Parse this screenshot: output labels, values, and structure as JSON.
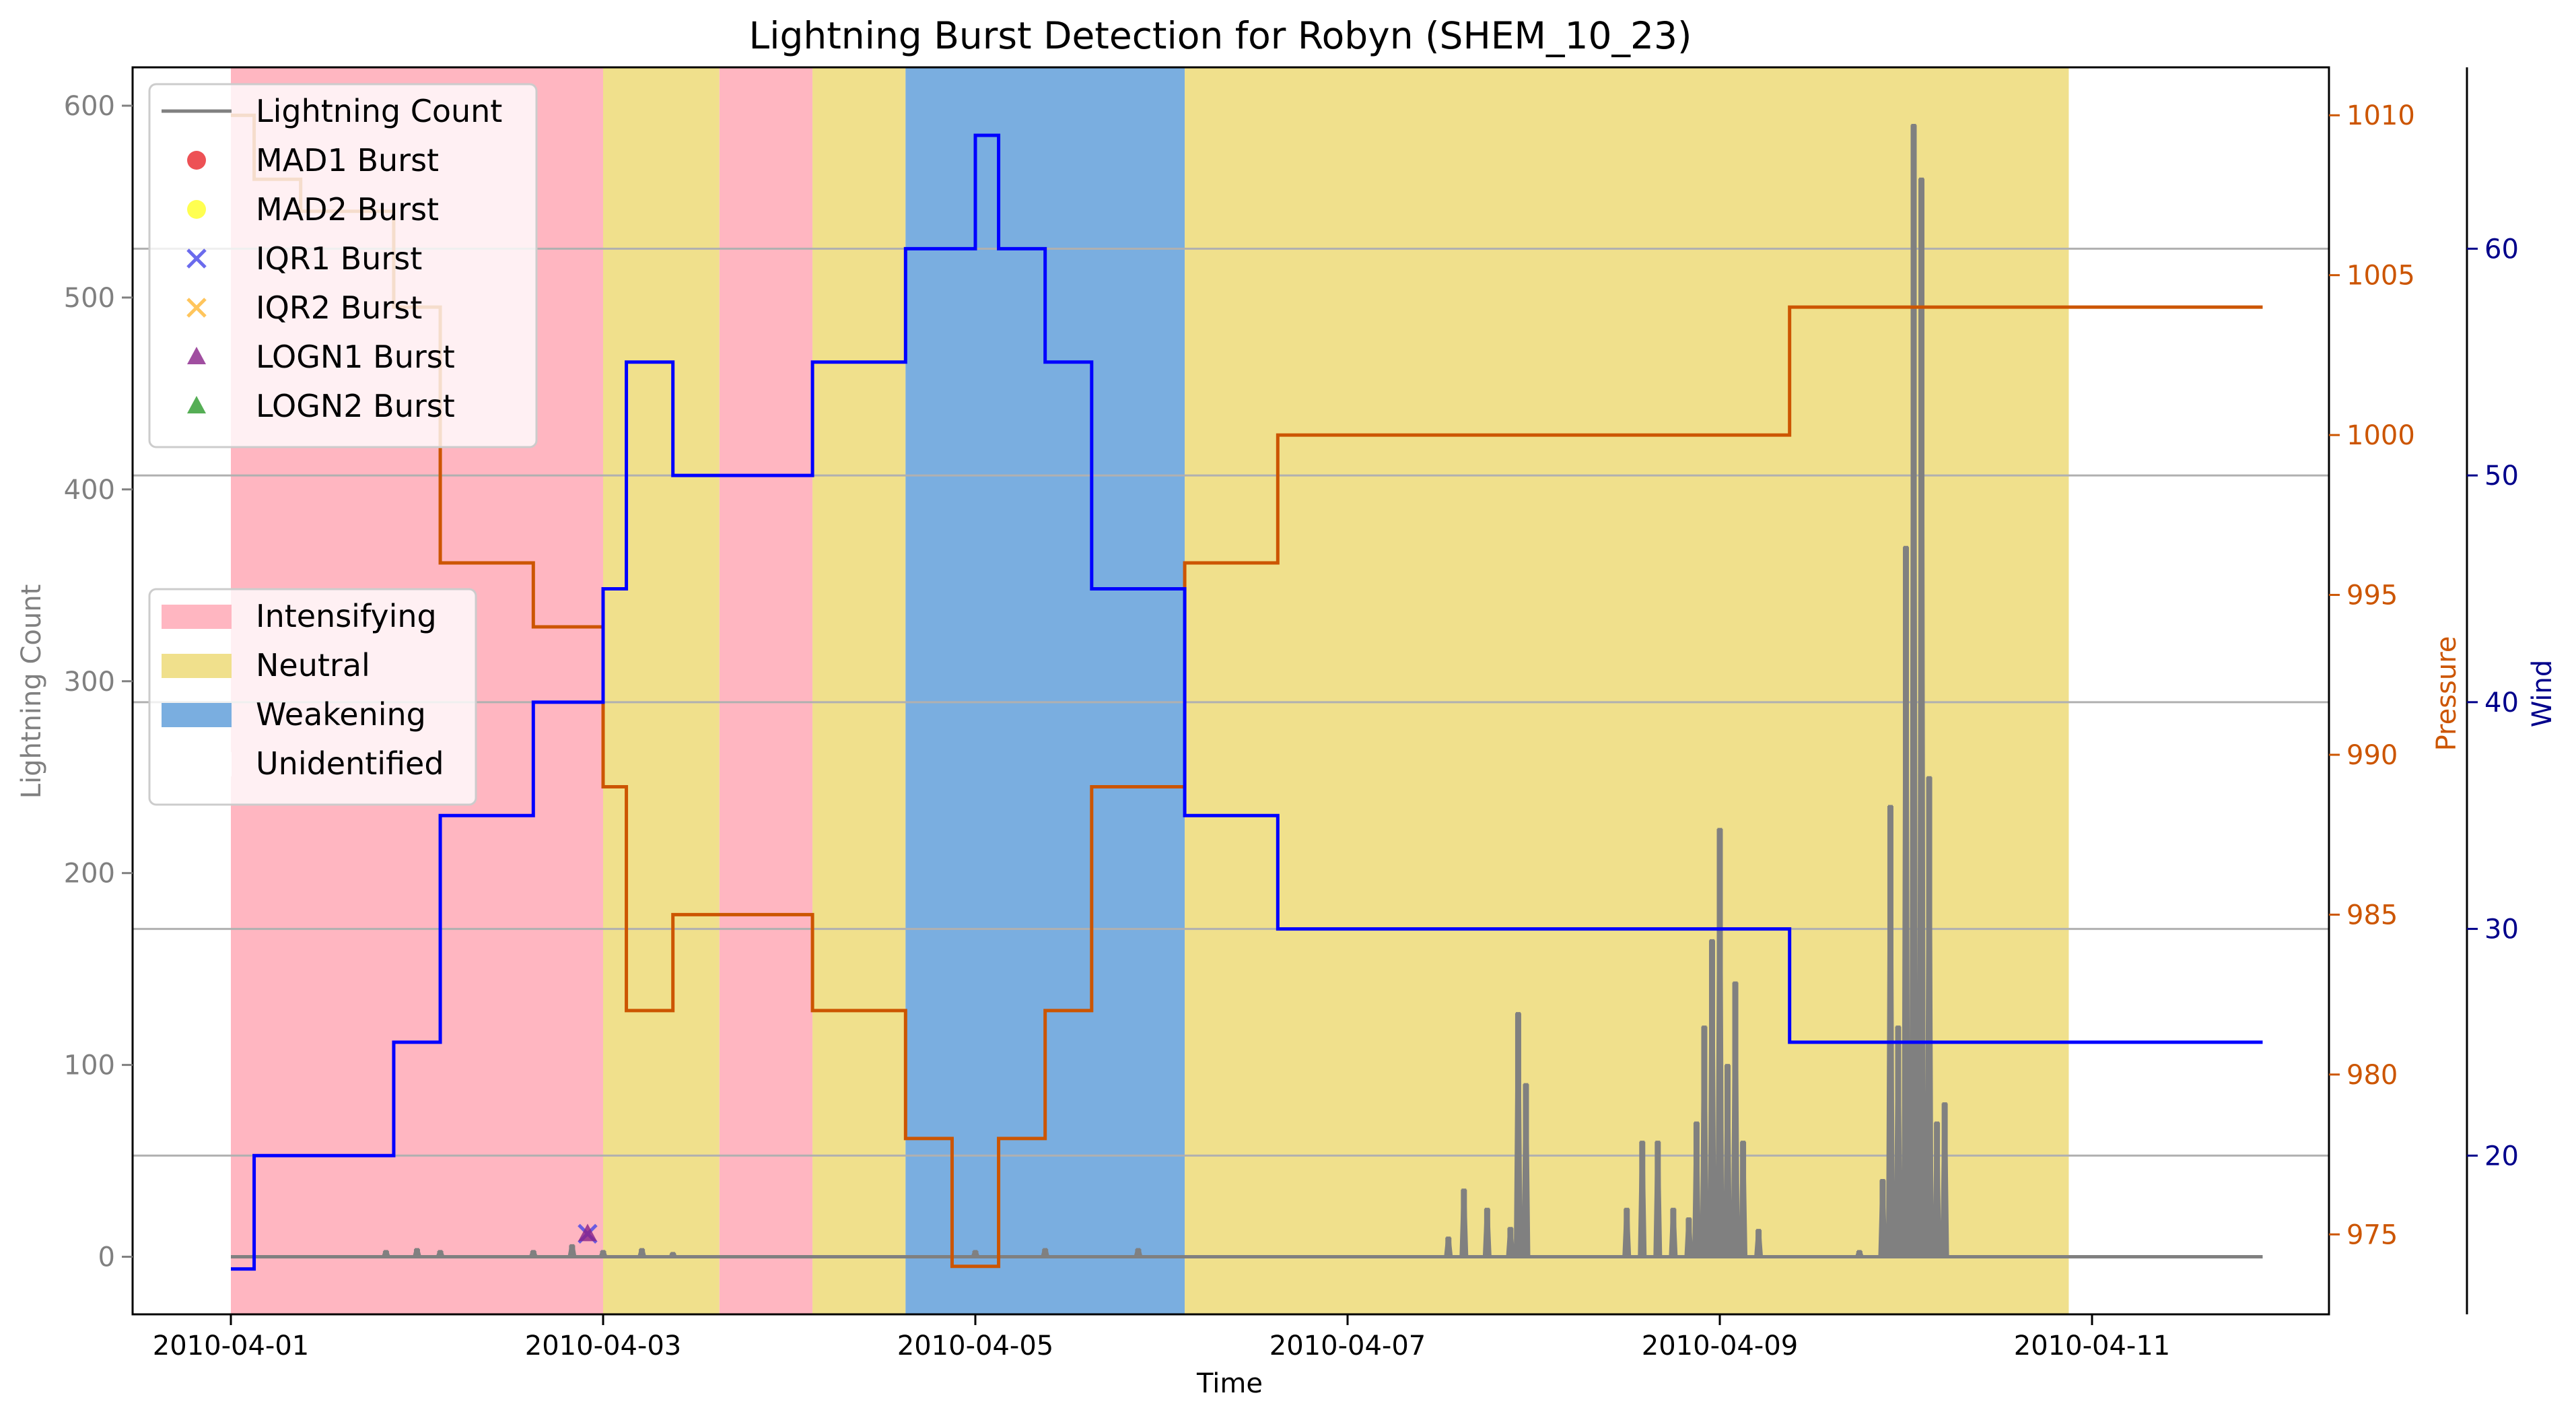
{
  "chart_data": {
    "type": "line",
    "title": "Lightning Burst Detection for Robyn (SHEM_10_23)",
    "xlabel": "Time",
    "ylabel_left": "Lightning Count",
    "ylabel_pressure": "Pressure",
    "ylabel_wind": "Wind",
    "x_range": [
      "2010-04-01T00:00",
      "2010-04-11T22:00"
    ],
    "x_ticks": [
      "2010-04-01",
      "2010-04-03",
      "2010-04-05",
      "2010-04-07",
      "2010-04-09",
      "2010-04-11"
    ],
    "ylim_left": [
      -30,
      620
    ],
    "yticks_left": [
      "0",
      "100",
      "200",
      "300",
      "400",
      "500",
      "600"
    ],
    "ylim_pressure": [
      972.5,
      1011.5
    ],
    "yticks_pressure": [
      "975",
      "980",
      "985",
      "990",
      "995",
      "1000",
      "1005",
      "1010"
    ],
    "ylim_wind": [
      13,
      68
    ],
    "yticks_wind": [
      "20",
      "30",
      "40",
      "50",
      "60"
    ],
    "grid": "horizontal lines at wind ticks",
    "colors": {
      "lightning": "#808080",
      "pressure": "#cc5500",
      "wind": "#0000ff",
      "intensifying": "#ffb6c1",
      "neutral": "#f0e08c",
      "weakening": "#7aaee0",
      "wind_axis": "#00008b"
    },
    "phases": [
      {
        "phase": "Intensifying",
        "start": "2010-04-01T00:00",
        "end": "2010-04-03T00:00"
      },
      {
        "phase": "Neutral",
        "start": "2010-04-03T00:00",
        "end": "2010-04-03T15:00"
      },
      {
        "phase": "Intensifying",
        "start": "2010-04-03T15:00",
        "end": "2010-04-04T03:00"
      },
      {
        "phase": "Neutral",
        "start": "2010-04-04T03:00",
        "end": "2010-04-04T15:00"
      },
      {
        "phase": "Weakening",
        "start": "2010-04-04T15:00",
        "end": "2010-04-06T03:00"
      },
      {
        "phase": "Neutral",
        "start": "2010-04-06T03:00",
        "end": "2010-04-10T21:00"
      }
    ],
    "pressure_series": {
      "name": "Pressure",
      "steps": [
        [
          "2010-04-01T00:00",
          1010
        ],
        [
          "2010-04-01T03:00",
          1008
        ],
        [
          "2010-04-01T09:00",
          1007
        ],
        [
          "2010-04-01T21:00",
          1004
        ],
        [
          "2010-04-02T03:00",
          996
        ],
        [
          "2010-04-02T15:00",
          994
        ],
        [
          "2010-04-03T00:00",
          989
        ],
        [
          "2010-04-03T03:00",
          982
        ],
        [
          "2010-04-03T09:00",
          985
        ],
        [
          "2010-04-04T03:00",
          982
        ],
        [
          "2010-04-04T15:00",
          978
        ],
        [
          "2010-04-04T21:00",
          974
        ],
        [
          "2010-04-05T03:00",
          978
        ],
        [
          "2010-04-05T09:00",
          982
        ],
        [
          "2010-04-05T15:00",
          989
        ],
        [
          "2010-04-06T03:00",
          996
        ],
        [
          "2010-04-06T15:00",
          1000
        ],
        [
          "2010-04-09T09:00",
          1004
        ]
      ],
      "end": "2010-04-11T22:00"
    },
    "wind_series": {
      "name": "Wind",
      "steps": [
        [
          "2010-04-01T00:00",
          15
        ],
        [
          "2010-04-01T03:00",
          20
        ],
        [
          "2010-04-01T21:00",
          25
        ],
        [
          "2010-04-02T03:00",
          35
        ],
        [
          "2010-04-02T15:00",
          40
        ],
        [
          "2010-04-03T00:00",
          45
        ],
        [
          "2010-04-03T03:00",
          55
        ],
        [
          "2010-04-03T09:00",
          50
        ],
        [
          "2010-04-04T03:00",
          55
        ],
        [
          "2010-04-04T15:00",
          60
        ],
        [
          "2010-04-05T00:00",
          65
        ],
        [
          "2010-04-05T03:00",
          60
        ],
        [
          "2010-04-05T09:00",
          55
        ],
        [
          "2010-04-05T15:00",
          45
        ],
        [
          "2010-04-06T03:00",
          35
        ],
        [
          "2010-04-06T15:00",
          30
        ],
        [
          "2010-04-09T09:00",
          25
        ]
      ],
      "end": "2010-04-11T22:00"
    },
    "lightning_series": {
      "name": "Lightning Count",
      "peaks": [
        [
          "2010-04-01T20:00",
          3
        ],
        [
          "2010-04-02T00:00",
          4
        ],
        [
          "2010-04-02T03:00",
          3
        ],
        [
          "2010-04-02T15:00",
          3
        ],
        [
          "2010-04-02T20:00",
          6
        ],
        [
          "2010-04-03T00:00",
          3
        ],
        [
          "2010-04-03T05:00",
          4
        ],
        [
          "2010-04-03T09:00",
          2
        ],
        [
          "2010-04-05T00:00",
          3
        ],
        [
          "2010-04-05T09:00",
          4
        ],
        [
          "2010-04-05T21:00",
          4
        ],
        [
          "2010-04-07T13:00",
          10
        ],
        [
          "2010-04-07T15:00",
          35
        ],
        [
          "2010-04-07T18:00",
          25
        ],
        [
          "2010-04-07T21:00",
          15
        ],
        [
          "2010-04-07T22:00",
          127
        ],
        [
          "2010-04-07T23:00",
          90
        ],
        [
          "2010-04-08T12:00",
          25
        ],
        [
          "2010-04-08T14:00",
          60
        ],
        [
          "2010-04-08T16:00",
          60
        ],
        [
          "2010-04-08T18:00",
          25
        ],
        [
          "2010-04-08T20:00",
          20
        ],
        [
          "2010-04-08T21:00",
          70
        ],
        [
          "2010-04-08T22:00",
          120
        ],
        [
          "2010-04-08T23:00",
          165
        ],
        [
          "2010-04-09T00:00",
          223
        ],
        [
          "2010-04-09T01:00",
          100
        ],
        [
          "2010-04-09T02:00",
          143
        ],
        [
          "2010-04-09T03:00",
          60
        ],
        [
          "2010-04-09T05:00",
          14
        ],
        [
          "2010-04-09T18:00",
          3
        ],
        [
          "2010-04-09T21:00",
          40
        ],
        [
          "2010-04-09T22:00",
          235
        ],
        [
          "2010-04-09T23:00",
          120
        ],
        [
          "2010-04-10T00:00",
          370
        ],
        [
          "2010-04-10T01:00",
          590
        ],
        [
          "2010-04-10T02:00",
          562
        ],
        [
          "2010-04-10T03:00",
          250
        ],
        [
          "2010-04-10T04:00",
          70
        ],
        [
          "2010-04-10T05:00",
          80
        ]
      ]
    },
    "bursts": [
      {
        "method": "IQR1 Burst",
        "time": "2010-04-02T22:00",
        "value": 12
      },
      {
        "method": "LOGN1 Burst",
        "time": "2010-04-02T22:00",
        "value": 12
      }
    ],
    "legend_markers": [
      {
        "label": "Lightning Count",
        "kind": "line",
        "color": "#808080"
      },
      {
        "label": "MAD1 Burst",
        "kind": "circle",
        "color": "#e8262b"
      },
      {
        "label": "MAD2 Burst",
        "kind": "circle",
        "color": "#ffff26"
      },
      {
        "label": "IQR1 Burst",
        "kind": "x",
        "color": "#4646e8"
      },
      {
        "label": "IQR2 Burst",
        "kind": "x",
        "color": "#ffb733"
      },
      {
        "label": "LOGN1 Burst",
        "kind": "triangle",
        "color": "#882288"
      },
      {
        "label": "LOGN2 Burst",
        "kind": "triangle",
        "color": "#2a9a2a"
      }
    ],
    "legend_phases": [
      {
        "label": "Intensifying",
        "color": "#ffb6c1"
      },
      {
        "label": "Neutral",
        "color": "#f0e08c"
      },
      {
        "label": "Weakening",
        "color": "#7aaee0"
      },
      {
        "label": "Unidentified",
        "color": "#ffffff"
      }
    ]
  }
}
